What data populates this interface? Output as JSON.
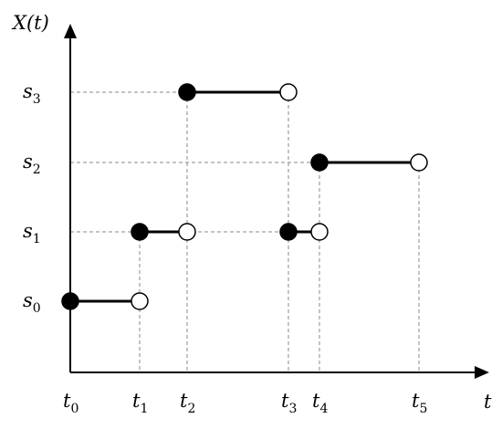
{
  "axes": {
    "y_label": "X(t)",
    "x_label": "t"
  },
  "x_labels": [
    {
      "symbol": "t",
      "index": "0"
    },
    {
      "symbol": "t",
      "index": "1"
    },
    {
      "symbol": "t",
      "index": "2"
    },
    {
      "symbol": "t",
      "index": "3"
    },
    {
      "symbol": "t",
      "index": "4"
    },
    {
      "symbol": "t",
      "index": "5"
    }
  ],
  "y_labels": [
    {
      "symbol": "s",
      "index": "0"
    },
    {
      "symbol": "s",
      "index": "1"
    },
    {
      "symbol": "s",
      "index": "2"
    },
    {
      "symbol": "s",
      "index": "3"
    }
  ]
}
